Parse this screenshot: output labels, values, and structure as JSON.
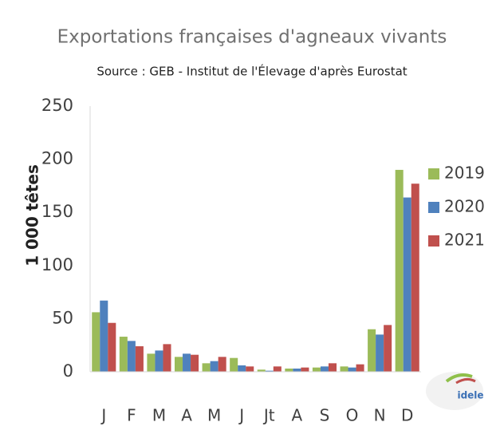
{
  "chart_data": {
    "type": "bar",
    "title": "Exportations françaises d'agneaux vivants",
    "subtitle": "Source : GEB - Institut de l'Élevage d'après Eurostat",
    "y_label": "1 000 têtes",
    "categories": [
      "J",
      "F",
      "M",
      "A",
      "M",
      "J",
      "Jt",
      "A",
      "S",
      "O",
      "N",
      "D"
    ],
    "series": [
      {
        "name": "2019",
        "color": "#9bbb59",
        "values": [
          56,
          33,
          17,
          14,
          8,
          13,
          2,
          3,
          4,
          5,
          40,
          190
        ]
      },
      {
        "name": "2020",
        "color": "#4f81bd",
        "values": [
          67,
          29,
          20,
          17,
          10,
          6,
          1,
          3,
          5,
          4,
          35,
          164
        ]
      },
      {
        "name": "2021",
        "color": "#c0504d",
        "values": [
          46,
          24,
          26,
          16,
          14,
          5,
          5,
          4,
          8,
          7,
          44,
          177
        ]
      }
    ],
    "ylim": [
      0,
      250
    ],
    "yticks": [
      0,
      50,
      100,
      150,
      200,
      250
    ],
    "grid": false,
    "legend": "right",
    "logo": "idele"
  }
}
